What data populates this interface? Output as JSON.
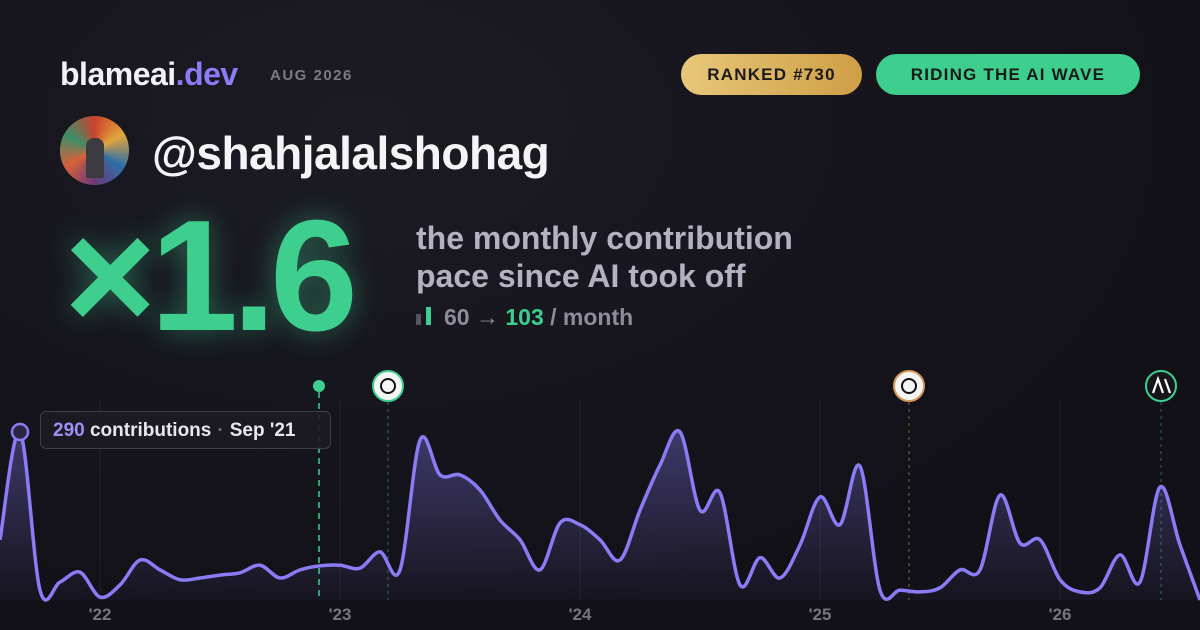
{
  "header": {
    "brand": "blameai",
    "brand_suffix": ".dev",
    "period": "AUG 2026",
    "badges": [
      "RANKED #730",
      "RIDING THE AI WAVE"
    ]
  },
  "profile": {
    "handle": "@shahjalalshohag"
  },
  "headline": {
    "multiplier": "×1.6",
    "line1": "the monthly contribution",
    "line2": "pace since AI took off",
    "before": "60",
    "arrow": "→",
    "after": "103",
    "unit": "/ month"
  },
  "tooltip": {
    "unit": "contributions",
    "separator": "·",
    "date": "Sep '21"
  },
  "chart_data": {
    "type": "line",
    "color": "#8b7cf6",
    "categories": [
      null,
      null,
      null,
      null,
      null,
      "'22",
      null,
      null,
      null,
      null,
      null,
      null,
      null,
      null,
      null,
      null,
      null,
      "'23",
      null,
      null,
      null,
      null,
      null,
      null,
      null,
      null,
      null,
      null,
      null,
      "'24",
      null,
      null,
      null,
      null,
      null,
      null,
      null,
      null,
      null,
      null,
      null,
      "'25",
      null,
      null,
      null,
      null,
      null,
      null,
      null,
      null,
      null,
      null,
      null,
      "'26",
      null,
      null,
      null,
      null,
      null,
      null,
      null
    ],
    "values": [
      104,
      290,
      17,
      31,
      48,
      5,
      26,
      69,
      52,
      35,
      38,
      43,
      47,
      60,
      38,
      52,
      59,
      60,
      55,
      83,
      52,
      276,
      216,
      216,
      190,
      138,
      104,
      52,
      133,
      130,
      104,
      69,
      155,
      233,
      290,
      155,
      185,
      26,
      73,
      38,
      95,
      178,
      130,
      231,
      17,
      17,
      14,
      21,
      52,
      52,
      181,
      98,
      104,
      35,
      14,
      21,
      78,
      31,
      195,
      95,
      0
    ],
    "ylim": [
      0,
      290
    ],
    "grid": true
  }
}
